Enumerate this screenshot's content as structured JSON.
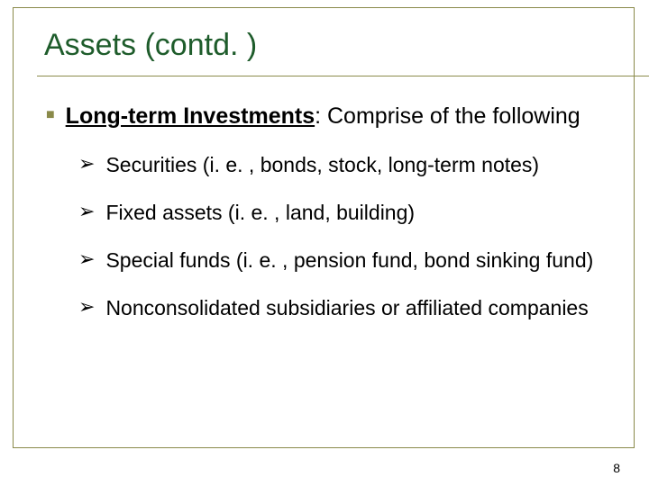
{
  "slide": {
    "title": "Assets (contd. )",
    "border_color": "#8a8a4a",
    "title_color": "#1e5c2b",
    "title_fontsize": 34,
    "main_bullet": {
      "marker": "■",
      "marker_color": "#8a8a4a",
      "lead_bold": "Long-term Investments",
      "lead_rest": ": Comprise of the following",
      "fontsize": 25,
      "text_color": "#000000"
    },
    "sub_bullets": {
      "marker": "➢",
      "marker_color": "#000000",
      "fontsize": 23,
      "items": [
        "Securities (i. e. , bonds, stock, long-term notes)",
        "Fixed assets (i. e. , land, building)",
        "Special funds (i. e. , pension fund, bond sinking fund)",
        "Nonconsolidated subsidiaries or affiliated companies"
      ]
    },
    "page_number": "8",
    "background_color": "#ffffff"
  }
}
